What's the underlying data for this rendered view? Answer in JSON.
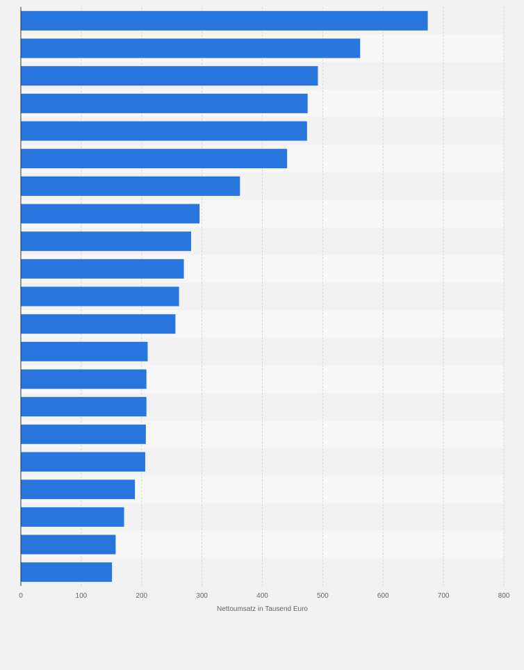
{
  "colors": {
    "bar": "#2876dd",
    "background": "#f2f2f2",
    "band_light": "#f7f7f7",
    "band_dark": "#f2f2f2",
    "grid": "#d9d9d9",
    "axis": "#333333",
    "tick_text": "#666666"
  },
  "chart_data": {
    "type": "bar",
    "orientation": "horizontal",
    "title": "",
    "xlabel": "Nettoumsatz in Tausend Euro",
    "ylabel": "",
    "xlim": [
      0,
      800
    ],
    "xticks": [
      0,
      100,
      200,
      300,
      400,
      500,
      600,
      700,
      800
    ],
    "grid": true,
    "category_labels_visible": false,
    "values": [
      674,
      562,
      492,
      475,
      474,
      441,
      363,
      296,
      282,
      270,
      262,
      256,
      210,
      208,
      208,
      207,
      206,
      189,
      171,
      157,
      151
    ]
  }
}
